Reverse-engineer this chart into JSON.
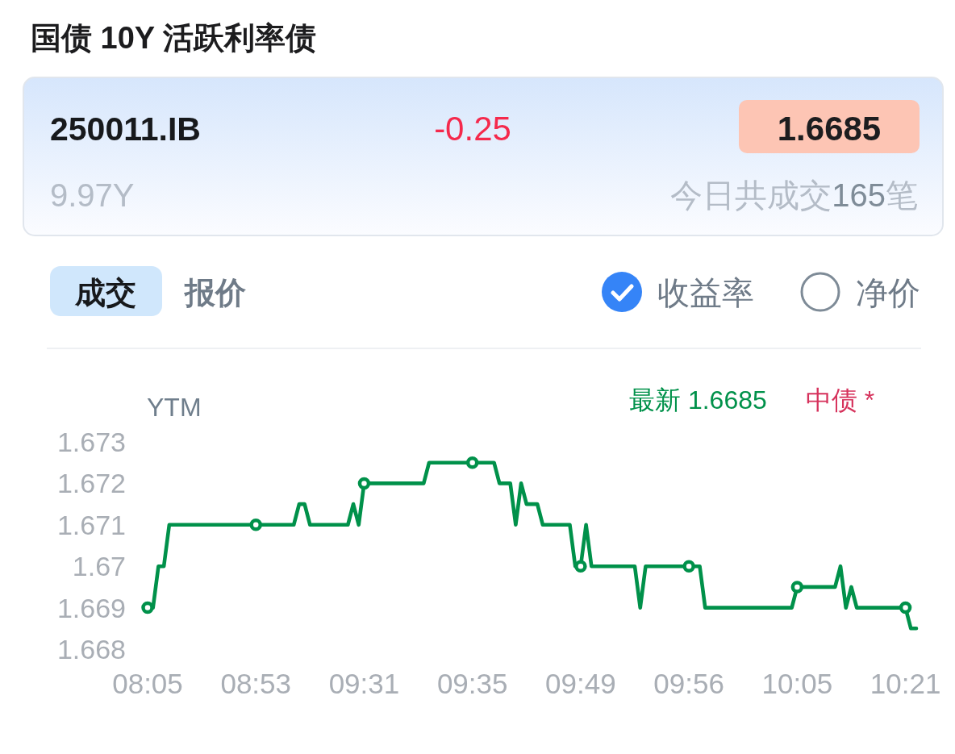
{
  "chart_data": [
    {
      "type": "other",
      "title": "国债 10Y 活跃利率债",
      "annotations": [
        "250011.IB",
        "-0.25",
        "1.6685",
        "9.97Y",
        "今日共成交165笔",
        "成交",
        "报价",
        "收益率",
        "净价"
      ]
    },
    {
      "type": "line",
      "ylabel": "YTM",
      "annotations": [
        "中债 *"
      ],
      "categories": [
        "08:05",
        null,
        null,
        null,
        null,
        null,
        null,
        null,
        null,
        null,
        null,
        null,
        null,
        null,
        null,
        null,
        null,
        null,
        null,
        null,
        "08:53",
        null,
        null,
        null,
        null,
        null,
        null,
        null,
        null,
        null,
        null,
        null,
        null,
        null,
        null,
        null,
        null,
        null,
        null,
        null,
        "09:31",
        null,
        null,
        null,
        null,
        null,
        null,
        null,
        null,
        null,
        null,
        null,
        null,
        null,
        null,
        null,
        null,
        null,
        null,
        null,
        "09:35",
        null,
        null,
        null,
        null,
        null,
        null,
        null,
        null,
        null,
        null,
        null,
        null,
        null,
        null,
        null,
        null,
        null,
        null,
        null,
        "09:49",
        null,
        null,
        null,
        null,
        null,
        null,
        null,
        null,
        null,
        null,
        null,
        null,
        null,
        null,
        null,
        null,
        null,
        null,
        null,
        "09:56",
        null,
        null,
        null,
        null,
        null,
        null,
        null,
        null,
        null,
        null,
        null,
        null,
        null,
        null,
        null,
        null,
        null,
        null,
        null,
        "10:05",
        null,
        null,
        null,
        null,
        null,
        null,
        null,
        null,
        null,
        null,
        null,
        null,
        null,
        null,
        null,
        null,
        null,
        null,
        null,
        "10:21",
        null,
        null
      ],
      "ylim": [
        1.668,
        1.673
      ],
      "yticks": [
        1.668,
        1.669,
        1.67,
        1.671,
        1.672,
        1.673
      ],
      "line_style": "solid",
      "series": [
        {
          "name": "最新 1.6685",
          "color": "#00914a",
          "values": [
            1.669,
            1.669,
            1.67,
            1.67,
            1.671,
            1.671,
            1.671,
            1.671,
            1.671,
            1.671,
            1.671,
            1.671,
            1.671,
            1.671,
            1.671,
            1.671,
            1.671,
            1.671,
            1.671,
            1.671,
            1.671,
            1.671,
            1.671,
            1.671,
            1.671,
            1.671,
            1.671,
            1.671,
            1.6715,
            1.6715,
            1.671,
            1.671,
            1.671,
            1.671,
            1.671,
            1.671,
            1.671,
            1.671,
            1.6715,
            1.671,
            1.672,
            1.672,
            1.672,
            1.672,
            1.672,
            1.672,
            1.672,
            1.672,
            1.672,
            1.672,
            1.672,
            1.672,
            1.6725,
            1.6725,
            1.6725,
            1.6725,
            1.6725,
            1.6725,
            1.6725,
            1.6725,
            1.6725,
            1.6725,
            1.6725,
            1.6725,
            1.6725,
            1.672,
            1.672,
            1.672,
            1.671,
            1.672,
            1.6715,
            1.6715,
            1.6715,
            1.671,
            1.671,
            1.671,
            1.671,
            1.671,
            1.671,
            1.67,
            1.67,
            1.671,
            1.67,
            1.67,
            1.67,
            1.67,
            1.67,
            1.67,
            1.67,
            1.67,
            1.67,
            1.669,
            1.67,
            1.67,
            1.67,
            1.67,
            1.67,
            1.67,
            1.67,
            1.67,
            1.67,
            1.67,
            1.67,
            1.669,
            1.669,
            1.669,
            1.669,
            1.669,
            1.669,
            1.669,
            1.669,
            1.669,
            1.669,
            1.669,
            1.669,
            1.669,
            1.669,
            1.669,
            1.669,
            1.669,
            1.6695,
            1.6695,
            1.6695,
            1.6695,
            1.6695,
            1.6695,
            1.6695,
            1.6695,
            1.67,
            1.669,
            1.6695,
            1.669,
            1.669,
            1.669,
            1.669,
            1.669,
            1.669,
            1.669,
            1.669,
            1.669,
            1.669,
            1.6685,
            1.6685
          ]
        },
        {
          "type": "scatter",
          "color": "#00914a",
          "marker": "circle",
          "x": [
            "08:05",
            "08:53",
            "09:31",
            "09:35",
            "09:49",
            "09:56",
            "10:05",
            "10:21"
          ],
          "values": [
            1.669,
            1.671,
            1.672,
            1.6725,
            1.67,
            1.67,
            1.6695,
            1.669
          ]
        }
      ]
    }
  ]
}
